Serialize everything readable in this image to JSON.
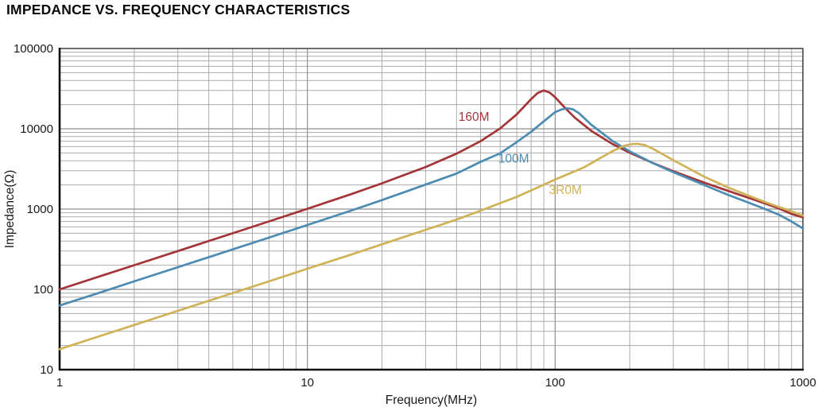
{
  "page_title": "IMPEDANCE VS. FREQUENCY CHARACTERISTICS",
  "chart_data": {
    "type": "line",
    "title": "IMPEDANCE VS. FREQUENCY CHARACTERISTICS",
    "xlabel": "Frequency(MHz)",
    "ylabel": "Impedance(Ω)",
    "x_scale": "log",
    "y_scale": "log",
    "xlim": [
      1,
      1000
    ],
    "ylim": [
      10,
      100000
    ],
    "x_ticks": [
      1,
      10,
      100,
      1000
    ],
    "y_ticks": [
      10,
      100,
      1000,
      10000,
      100000
    ],
    "grid": {
      "major": true,
      "minor": true
    },
    "legend_position": "inline-labels",
    "colors": {
      "grid_minor": "#ACACAC",
      "grid_major": "#8F8F8F",
      "frame": "#4A4A4A",
      "spine": "#111111",
      "text": "#1A1A1A"
    },
    "series": [
      {
        "name": "160M",
        "color": "#A43539",
        "label": {
          "text": "160M",
          "x": 47,
          "y": 12500
        },
        "points": [
          [
            1,
            100
          ],
          [
            1.5,
            150
          ],
          [
            2,
            200
          ],
          [
            3,
            300
          ],
          [
            5,
            500
          ],
          [
            7,
            703
          ],
          [
            10,
            1010
          ],
          [
            15,
            1530
          ],
          [
            20,
            2095
          ],
          [
            30,
            3340
          ],
          [
            40,
            4900
          ],
          [
            50,
            7010
          ],
          [
            60,
            10120
          ],
          [
            70,
            15150
          ],
          [
            80,
            23400
          ],
          [
            85,
            27900
          ],
          [
            90,
            30000
          ],
          [
            95,
            28300
          ],
          [
            100,
            24700
          ],
          [
            110,
            18000
          ],
          [
            120,
            13800
          ],
          [
            140,
            9400
          ],
          [
            170,
            6480
          ],
          [
            200,
            5020
          ],
          [
            250,
            3710
          ],
          [
            300,
            2960
          ],
          [
            400,
            2130
          ],
          [
            500,
            1680
          ],
          [
            600,
            1390
          ],
          [
            700,
            1180
          ],
          [
            800,
            1020
          ],
          [
            900,
            870
          ],
          [
            950,
            825
          ],
          [
            1000,
            790
          ]
        ]
      },
      {
        "name": "100M",
        "color": "#4D8CB2",
        "label": {
          "text": "100M",
          "x": 68,
          "y": 3800
        },
        "points": [
          [
            1,
            63
          ],
          [
            1.5,
            94
          ],
          [
            2,
            126
          ],
          [
            3,
            189
          ],
          [
            5,
            315
          ],
          [
            7,
            441
          ],
          [
            10,
            634
          ],
          [
            15,
            955
          ],
          [
            20,
            1295
          ],
          [
            30,
            2020
          ],
          [
            40,
            2770
          ],
          [
            50,
            3870
          ],
          [
            60,
            4960
          ],
          [
            70,
            6830
          ],
          [
            80,
            9170
          ],
          [
            90,
            12400
          ],
          [
            100,
            16100
          ],
          [
            106,
            17400
          ],
          [
            112,
            18000
          ],
          [
            118,
            17500
          ],
          [
            125,
            15600
          ],
          [
            140,
            11200
          ],
          [
            170,
            7090
          ],
          [
            200,
            5230
          ],
          [
            250,
            3690
          ],
          [
            300,
            2880
          ],
          [
            400,
            1990
          ],
          [
            500,
            1500
          ],
          [
            600,
            1210
          ],
          [
            700,
            1010
          ],
          [
            800,
            850
          ],
          [
            900,
            700
          ],
          [
            1000,
            575
          ]
        ]
      },
      {
        "name": "3R0M",
        "color": "#D0B257",
        "label": {
          "text": "3R0M",
          "x": 110,
          "y": 1550
        },
        "points": [
          [
            1,
            18
          ],
          [
            1.5,
            27
          ],
          [
            2,
            36
          ],
          [
            3,
            54
          ],
          [
            5,
            90
          ],
          [
            7,
            126
          ],
          [
            10,
            181
          ],
          [
            15,
            271
          ],
          [
            20,
            364
          ],
          [
            30,
            551
          ],
          [
            40,
            740
          ],
          [
            50,
            955
          ],
          [
            70,
            1420
          ],
          [
            100,
            2330
          ],
          [
            130,
            3280
          ],
          [
            150,
            4210
          ],
          [
            170,
            5250
          ],
          [
            190,
            6150
          ],
          [
            205,
            6450
          ],
          [
            215,
            6500
          ],
          [
            230,
            6260
          ],
          [
            250,
            5570
          ],
          [
            300,
            4060
          ],
          [
            400,
            2530
          ],
          [
            500,
            1850
          ],
          [
            600,
            1480
          ],
          [
            700,
            1230
          ],
          [
            800,
            1060
          ],
          [
            900,
            940
          ],
          [
            1000,
            830
          ]
        ]
      }
    ]
  }
}
